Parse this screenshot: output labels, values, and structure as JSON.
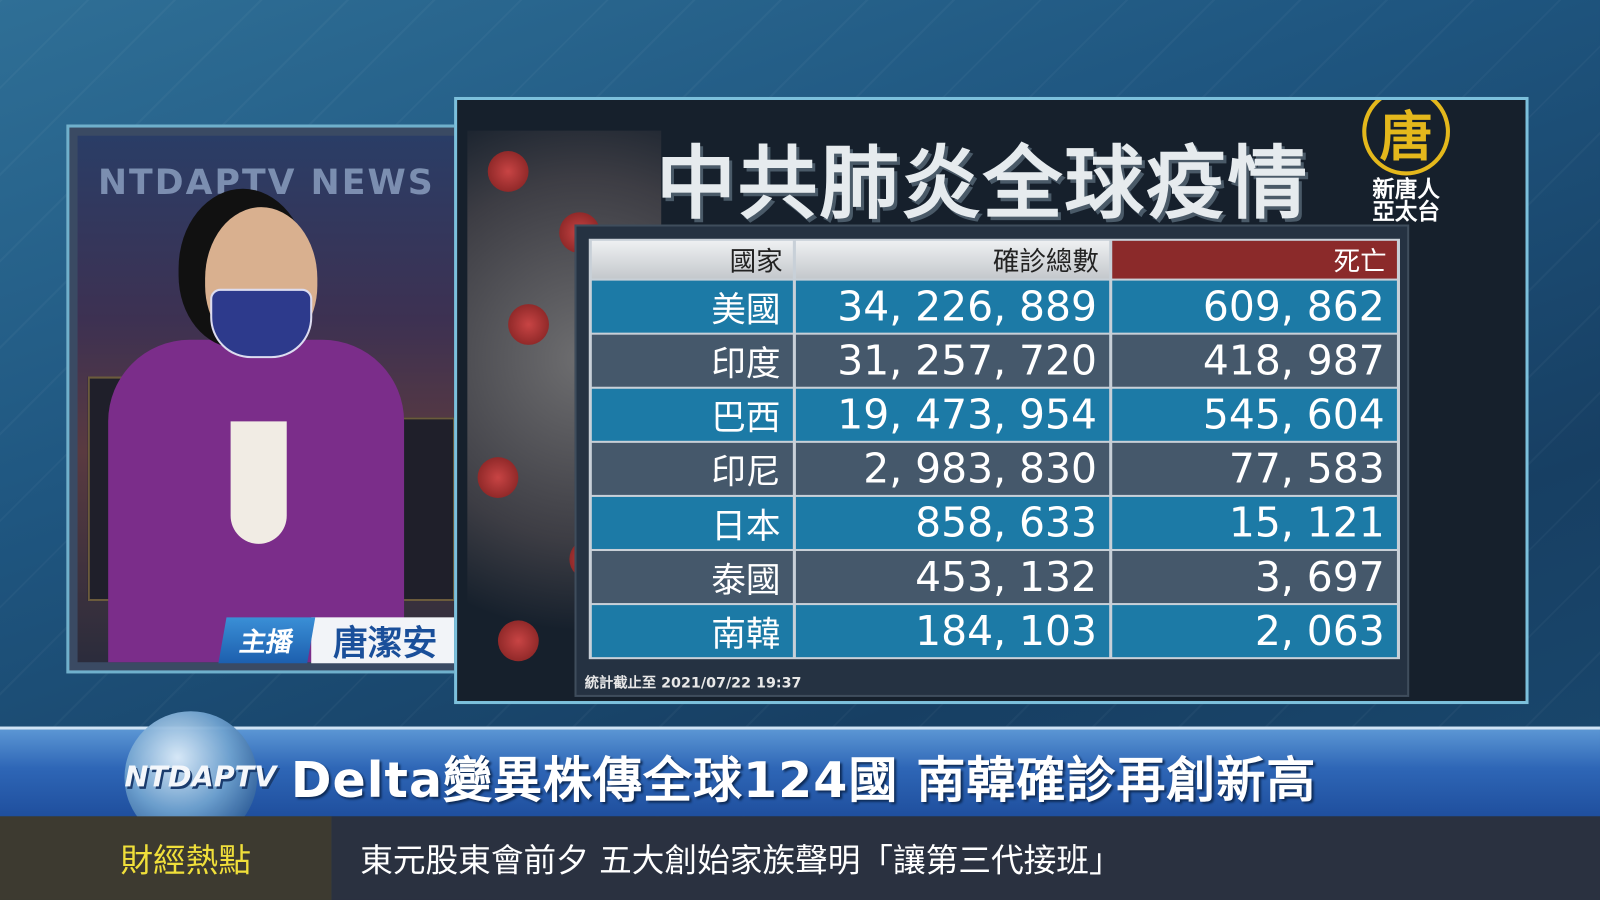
{
  "anchor": {
    "studio_sign": "NTDAPTV NEWS",
    "role_label": "主播",
    "name": "唐潔安"
  },
  "panel": {
    "title": "中共肺炎全球疫情",
    "logo": {
      "emblem": "唐",
      "text_line1": "新唐人",
      "text_line2": "亞太台"
    },
    "table": {
      "headers": [
        "國家",
        "確診總數",
        "死亡"
      ],
      "rows": [
        {
          "country": "美國",
          "cases": "34, 226, 889",
          "deaths": "609, 862"
        },
        {
          "country": "印度",
          "cases": "31, 257, 720",
          "deaths": "418, 987"
        },
        {
          "country": "巴西",
          "cases": "19, 473, 954",
          "deaths": "545, 604"
        },
        {
          "country": "印尼",
          "cases": "2, 983, 830",
          "deaths": "77, 583"
        },
        {
          "country": "日本",
          "cases": "858, 633",
          "deaths": "15, 121"
        },
        {
          "country": "泰國",
          "cases": "453, 132",
          "deaths": "3, 697"
        },
        {
          "country": "南韓",
          "cases": "184, 103",
          "deaths": "2, 063"
        }
      ],
      "timestamp": "統計截止至 2021/07/22 19:37"
    }
  },
  "ticker": {
    "channel_logo": "NTDAPTV",
    "headline": "Delta變異株傳全球124國  南韓確診再創新高"
  },
  "bottom": {
    "category": "財經熱點",
    "news": "東元股東會前夕  五大創始家族聲明「讓第三代接班」"
  },
  "colors": {
    "table_blue": "#1c7aa6",
    "table_gray": "#45586b",
    "death_header": "#8b2a2a",
    "category_text": "#f0df3a",
    "logo_gold": "#e4b81c"
  }
}
